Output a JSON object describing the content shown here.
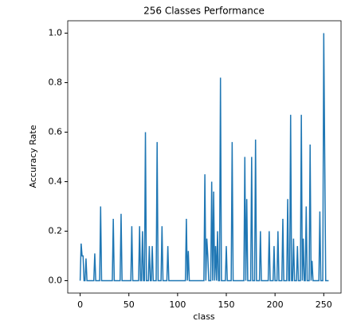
{
  "chart_data": {
    "type": "line",
    "title": "256 Classes Performance",
    "xlabel": "class",
    "ylabel": "Accuracy Rate",
    "x": [
      0,
      1,
      2,
      3,
      4,
      5,
      6,
      7,
      8,
      9,
      10,
      11,
      12,
      13,
      14,
      15,
      16,
      17,
      18,
      19,
      20,
      21,
      22,
      23,
      24,
      25,
      26,
      27,
      28,
      29,
      30,
      31,
      32,
      33,
      34,
      35,
      36,
      37,
      38,
      39,
      40,
      41,
      42,
      43,
      44,
      45,
      46,
      47,
      48,
      49,
      50,
      51,
      52,
      53,
      54,
      55,
      56,
      57,
      58,
      59,
      60,
      61,
      62,
      63,
      64,
      65,
      66,
      67,
      68,
      69,
      70,
      71,
      72,
      73,
      74,
      75,
      76,
      77,
      78,
      79,
      80,
      81,
      82,
      83,
      84,
      85,
      86,
      87,
      88,
      89,
      90,
      91,
      92,
      93,
      94,
      95,
      96,
      97,
      98,
      99,
      100,
      101,
      102,
      103,
      104,
      105,
      106,
      107,
      108,
      109,
      110,
      111,
      112,
      113,
      114,
      115,
      116,
      117,
      118,
      119,
      120,
      121,
      122,
      123,
      124,
      125,
      126,
      127,
      128,
      129,
      130,
      131,
      132,
      133,
      134,
      135,
      136,
      137,
      138,
      139,
      140,
      141,
      142,
      143,
      144,
      145,
      146,
      147,
      148,
      149,
      150,
      151,
      152,
      153,
      154,
      155,
      156,
      157,
      158,
      159,
      160,
      161,
      162,
      163,
      164,
      165,
      166,
      167,
      168,
      169,
      170,
      171,
      172,
      173,
      174,
      175,
      176,
      177,
      178,
      179,
      180,
      181,
      182,
      183,
      184,
      185,
      186,
      187,
      188,
      189,
      190,
      191,
      192,
      193,
      194,
      195,
      196,
      197,
      198,
      199,
      200,
      201,
      202,
      203,
      204,
      205,
      206,
      207,
      208,
      209,
      210,
      211,
      212,
      213,
      214,
      215,
      216,
      217,
      218,
      219,
      220,
      221,
      222,
      223,
      224,
      225,
      226,
      227,
      228,
      229,
      230,
      231,
      232,
      233,
      234,
      235,
      236,
      237,
      238,
      239,
      240,
      241,
      242,
      243,
      244,
      245,
      246,
      247,
      248,
      249,
      250,
      251,
      252,
      253,
      254,
      255
    ],
    "series": [
      {
        "name": "accuracy",
        "color": "#1f77b4",
        "values": [
          0,
          0.15,
          0.1,
          0.1,
          0,
          0,
          0.09,
          0,
          0,
          0,
          0,
          0,
          0,
          0,
          0,
          0.11,
          0,
          0,
          0,
          0,
          0,
          0.3,
          0,
          0,
          0,
          0,
          0,
          0,
          0,
          0,
          0,
          0,
          0,
          0,
          0.25,
          0,
          0,
          0,
          0,
          0,
          0,
          0,
          0.27,
          0,
          0,
          0,
          0,
          0,
          0,
          0,
          0,
          0,
          0,
          0.22,
          0,
          0,
          0,
          0,
          0,
          0,
          0,
          0.22,
          0,
          0,
          0.2,
          0,
          0,
          0.6,
          0,
          0,
          0,
          0.14,
          0,
          0,
          0.14,
          0,
          0,
          0,
          0,
          0.56,
          0,
          0,
          0,
          0,
          0.22,
          0,
          0,
          0,
          0,
          0,
          0.14,
          0,
          0,
          0,
          0,
          0,
          0,
          0,
          0,
          0,
          0,
          0,
          0,
          0,
          0,
          0,
          0,
          0,
          0,
          0.25,
          0,
          0.12,
          0,
          0,
          0,
          0,
          0,
          0,
          0,
          0,
          0,
          0,
          0,
          0,
          0,
          0,
          0,
          0,
          0.43,
          0,
          0.17,
          0.1,
          0,
          0,
          0,
          0.4,
          0,
          0.36,
          0,
          0.14,
          0,
          0.2,
          0,
          0,
          0.82,
          0,
          0,
          0,
          0,
          0,
          0.14,
          0,
          0,
          0,
          0,
          0,
          0.56,
          0,
          0,
          0,
          0,
          0,
          0,
          0,
          0,
          0,
          0,
          0,
          0,
          0.5,
          0,
          0.33,
          0,
          0,
          0,
          0,
          0.5,
          0,
          0,
          0,
          0.57,
          0,
          0,
          0,
          0,
          0.2,
          0,
          0,
          0,
          0,
          0,
          0,
          0,
          0,
          0.2,
          0,
          0,
          0,
          0,
          0.14,
          0,
          0,
          0,
          0.2,
          0,
          0,
          0,
          0,
          0.25,
          0,
          0,
          0,
          0,
          0.33,
          0,
          0,
          0.67,
          0,
          0,
          0.17,
          0,
          0,
          0,
          0.14,
          0,
          0,
          0,
          0.67,
          0,
          0.17,
          0,
          0,
          0.3,
          0,
          0,
          0,
          0.55,
          0,
          0.08,
          0,
          0,
          0,
          0,
          0,
          0,
          0,
          0.28,
          0,
          0,
          0,
          1.0,
          0.5,
          0,
          0,
          0,
          0
        ]
      }
    ],
    "xlim": [
      -12.75,
      267.75
    ],
    "ylim": [
      -0.05,
      1.05
    ],
    "xticks": [
      0,
      50,
      100,
      150,
      200,
      250
    ],
    "yticks": [
      {
        "value": 0,
        "label": "0.0"
      },
      0.2,
      0.4,
      0.6,
      0.8,
      {
        "value": 1,
        "label": "1.0"
      }
    ]
  }
}
